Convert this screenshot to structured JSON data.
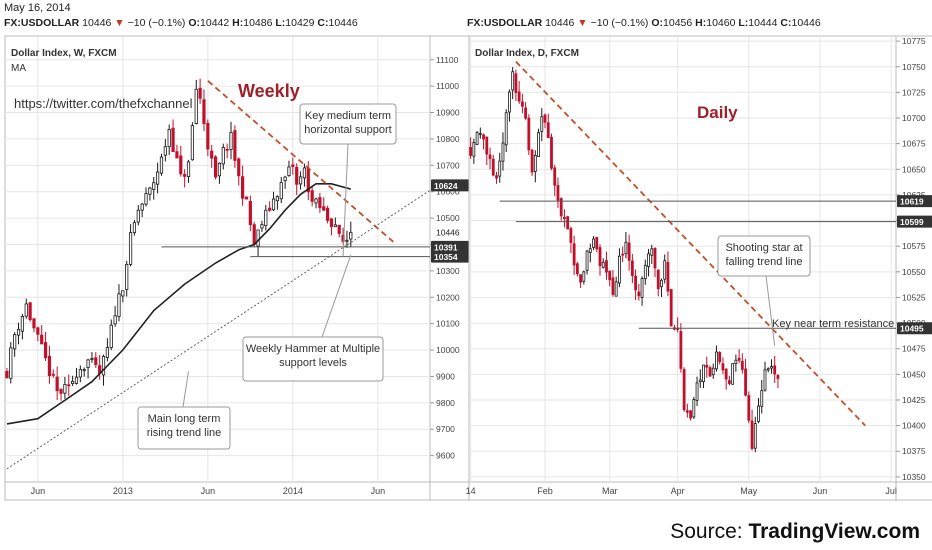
{
  "header": {
    "date": "May 16, 2014"
  },
  "colors": {
    "up": "#1a1a1a",
    "down": "#c0102a",
    "ma": "#222222",
    "trend_dash": "#c0502a",
    "support": "#555555",
    "grid": "#e6e6e6",
    "title_red": "#a0202a"
  },
  "source": {
    "prefix": "Source: ",
    "brand": "TradingView.com"
  },
  "chart_data": [
    {
      "id": "weekly",
      "type": "candlestick",
      "symbol_line": {
        "symbol": "FX:USDOLLAR",
        "last": "10446",
        "change": "−10 (−0.1%)",
        "open_label": "O:",
        "open": "10442",
        "high_label": "H:",
        "high": "10486",
        "low_label": "L:",
        "low": "10429",
        "close_label": "C:",
        "close": "10446"
      },
      "instrument_label": "Dollar Index, W, FXCM",
      "indicator_label": "MA",
      "title": "Weekly",
      "watermark": "https://twitter.com/thefxchannel",
      "ylim": [
        9500,
        11190
      ],
      "y_ticks": [
        9600,
        9700,
        9800,
        9900,
        10000,
        10100,
        10200,
        10300,
        10400,
        10500,
        10600,
        10700,
        10800,
        10900,
        11000,
        11100
      ],
      "x_ticks": [
        {
          "label": "Jun",
          "i": 8
        },
        {
          "label": "2013",
          "i": 30
        },
        {
          "label": "Jun",
          "i": 52
        },
        {
          "label": "2014",
          "i": 74
        },
        {
          "label": "Jun",
          "i": 96
        }
      ],
      "x_count": 110,
      "price_badges": [
        {
          "label": "10624",
          "value": 10624,
          "dark": true
        },
        {
          "label": "10391",
          "value": 10391,
          "dark": true
        },
        {
          "label": "10354",
          "value": 10354,
          "dark": true
        }
      ],
      "last_price_label": {
        "label": "10446",
        "value": 10446
      },
      "close_anchors": [
        [
          0,
          9920
        ],
        [
          2,
          10060
        ],
        [
          5,
          10170
        ],
        [
          7,
          10080
        ],
        [
          10,
          9960
        ],
        [
          13,
          9840
        ],
        [
          16,
          9850
        ],
        [
          18,
          9920
        ],
        [
          21,
          9960
        ],
        [
          24,
          9910
        ],
        [
          26,
          10000
        ],
        [
          28,
          10150
        ],
        [
          30,
          10250
        ],
        [
          32,
          10420
        ],
        [
          34,
          10530
        ],
        [
          37,
          10600
        ],
        [
          40,
          10720
        ],
        [
          42,
          10840
        ],
        [
          45,
          10650
        ],
        [
          47,
          10700
        ],
        [
          49,
          10990
        ],
        [
          50,
          10950
        ],
        [
          52,
          10780
        ],
        [
          54,
          10640
        ],
        [
          56,
          10750
        ],
        [
          58,
          10800
        ],
        [
          60,
          10650
        ],
        [
          62,
          10550
        ],
        [
          64,
          10400
        ],
        [
          66,
          10480
        ],
        [
          68,
          10540
        ],
        [
          70,
          10600
        ],
        [
          72,
          10650
        ],
        [
          74,
          10700
        ],
        [
          75,
          10620
        ],
        [
          77,
          10680
        ],
        [
          79,
          10560
        ],
        [
          81,
          10540
        ],
        [
          83,
          10500
        ],
        [
          85,
          10480
        ],
        [
          86,
          10420
        ],
        [
          87,
          10410
        ],
        [
          88,
          10420
        ],
        [
          89,
          10446
        ]
      ],
      "moving_average": [
        [
          0,
          9720
        ],
        [
          8,
          9740
        ],
        [
          16,
          9820
        ],
        [
          22,
          9880
        ],
        [
          30,
          10000
        ],
        [
          38,
          10150
        ],
        [
          46,
          10250
        ],
        [
          54,
          10330
        ],
        [
          60,
          10380
        ],
        [
          64,
          10400
        ],
        [
          68,
          10460
        ],
        [
          72,
          10530
        ],
        [
          76,
          10590
        ],
        [
          80,
          10630
        ],
        [
          84,
          10630
        ],
        [
          89,
          10610
        ]
      ],
      "lines": [
        {
          "kind": "dashed-trend",
          "from": [
            52,
            11020
          ],
          "to": [
            100,
            10410
          ]
        },
        {
          "kind": "dotted-trend",
          "from": [
            0,
            9550
          ],
          "to": [
            110,
            10610
          ]
        },
        {
          "kind": "support",
          "from": [
            40,
            10391
          ],
          "to": [
            110,
            10391
          ]
        },
        {
          "kind": "support",
          "from": [
            63,
            10354
          ],
          "to": [
            110,
            10354
          ]
        }
      ],
      "annotations": [
        {
          "text": [
            "Key medium term",
            "horizontal support"
          ],
          "target": [
            87,
            10354
          ]
        },
        {
          "text": [
            "Weekly Hammer at Multiple",
            "support levels"
          ],
          "target": [
            89,
            10360
          ]
        },
        {
          "text": [
            "Main long term",
            "rising trend line"
          ],
          "target": [
            47,
            9920
          ]
        }
      ]
    },
    {
      "id": "daily",
      "type": "candlestick",
      "symbol_line": {
        "symbol": "FX:USDOLLAR",
        "last": "10446",
        "change": "−10 (−0.1%)",
        "open_label": "O:",
        "open": "10456",
        "high_label": "H:",
        "high": "10460",
        "low_label": "L:",
        "low": "10444",
        "close_label": "C:",
        "close": "10446"
      },
      "instrument_label": "Dollar Index, D, FXCM",
      "title": "Daily",
      "ylim": [
        10345,
        10780
      ],
      "y_ticks": [
        10350,
        10375,
        10400,
        10425,
        10450,
        10475,
        10500,
        10525,
        10550,
        10575,
        10600,
        10625,
        10650,
        10675,
        10700,
        10725,
        10750,
        10775
      ],
      "x_ticks": [
        {
          "label": "14",
          "i": 0
        },
        {
          "label": "Feb",
          "i": 23
        },
        {
          "label": "Mar",
          "i": 43
        },
        {
          "label": "Apr",
          "i": 64
        },
        {
          "label": "May",
          "i": 86
        },
        {
          "label": "Jun",
          "i": 108
        },
        {
          "label": "Jul",
          "i": 130
        }
      ],
      "x_count": 132,
      "price_badges": [
        {
          "label": "10619",
          "value": 10619,
          "dark": true
        },
        {
          "label": "10599",
          "value": 10599,
          "dark": true
        },
        {
          "label": "10495",
          "value": 10495,
          "dark": true
        }
      ],
      "last_price_label": null,
      "close_anchors": [
        [
          0,
          10670
        ],
        [
          3,
          10690
        ],
        [
          6,
          10660
        ],
        [
          8,
          10640
        ],
        [
          11,
          10700
        ],
        [
          13,
          10740
        ],
        [
          15,
          10720
        ],
        [
          17,
          10700
        ],
        [
          19,
          10650
        ],
        [
          21,
          10690
        ],
        [
          23,
          10700
        ],
        [
          25,
          10650
        ],
        [
          27,
          10620
        ],
        [
          30,
          10590
        ],
        [
          32,
          10560
        ],
        [
          34,
          10540
        ],
        [
          36,
          10570
        ],
        [
          38,
          10580
        ],
        [
          40,
          10560
        ],
        [
          42,
          10550
        ],
        [
          44,
          10530
        ],
        [
          46,
          10560
        ],
        [
          48,
          10580
        ],
        [
          50,
          10540
        ],
        [
          52,
          10520
        ],
        [
          54,
          10560
        ],
        [
          56,
          10570
        ],
        [
          58,
          10530
        ],
        [
          60,
          10560
        ],
        [
          62,
          10500
        ],
        [
          64,
          10490
        ],
        [
          66,
          10420
        ],
        [
          68,
          10410
        ],
        [
          70,
          10440
        ],
        [
          72,
          10460
        ],
        [
          74,
          10450
        ],
        [
          76,
          10470
        ],
        [
          78,
          10460
        ],
        [
          80,
          10440
        ],
        [
          82,
          10470
        ],
        [
          84,
          10460
        ],
        [
          86,
          10400
        ],
        [
          87,
          10380
        ],
        [
          88,
          10400
        ],
        [
          90,
          10440
        ],
        [
          92,
          10460
        ],
        [
          94,
          10450
        ],
        [
          95,
          10446
        ]
      ],
      "lines": [
        {
          "kind": "dashed-trend",
          "from": [
            14,
            10755
          ],
          "to": [
            122,
            10400
          ]
        },
        {
          "kind": "support",
          "from": [
            9,
            10619
          ],
          "to": [
            132,
            10619
          ]
        },
        {
          "kind": "support",
          "from": [
            14,
            10599
          ],
          "to": [
            132,
            10599
          ]
        },
        {
          "kind": "support",
          "from": [
            52,
            10495
          ],
          "to": [
            132,
            10495
          ]
        }
      ],
      "annotations": [
        {
          "text": [
            "Shooting star at",
            "falling trend line"
          ],
          "target": [
            94,
            10478
          ]
        },
        {
          "text": [
            "Key near term resistance"
          ],
          "target": null
        }
      ]
    }
  ]
}
